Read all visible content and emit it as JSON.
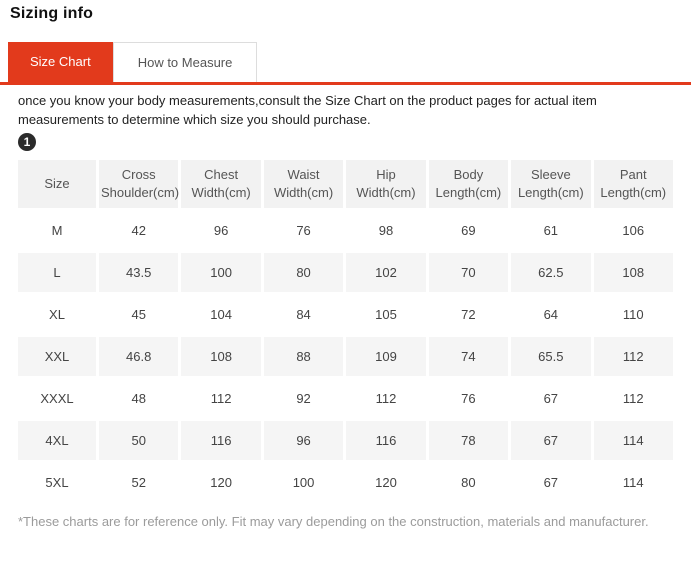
{
  "page": {
    "title": "Sizing info"
  },
  "tabs": [
    {
      "label": "Size Chart",
      "active": true
    },
    {
      "label": "How to Measure",
      "active": false
    }
  ],
  "description": "once you know your body measurements,consult the Size Chart on the product pages for actual item measurements to determine which size you should purchase.",
  "badge": "1",
  "table": {
    "columns": [
      "Size",
      "Cross Shoulder(cm)",
      "Chest Width(cm)",
      "Waist Width(cm)",
      "Hip Width(cm)",
      "Body Length(cm)",
      "Sleeve Length(cm)",
      "Pant Length(cm)"
    ],
    "rows": [
      [
        "M",
        "42",
        "96",
        "76",
        "98",
        "69",
        "61",
        "106"
      ],
      [
        "L",
        "43.5",
        "100",
        "80",
        "102",
        "70",
        "62.5",
        "108"
      ],
      [
        "XL",
        "45",
        "104",
        "84",
        "105",
        "72",
        "64",
        "110"
      ],
      [
        "XXL",
        "46.8",
        "108",
        "88",
        "109",
        "74",
        "65.5",
        "112"
      ],
      [
        "XXXL",
        "48",
        "112",
        "92",
        "112",
        "76",
        "67",
        "112"
      ],
      [
        "4XL",
        "50",
        "116",
        "96",
        "116",
        "78",
        "67",
        "114"
      ],
      [
        "5XL",
        "52",
        "120",
        "100",
        "120",
        "80",
        "67",
        "114"
      ]
    ]
  },
  "footnote": "*These charts are for reference only. Fit may vary depending on the construction, materials and manufacturer.",
  "colors": {
    "accent": "#e23a1c",
    "header_bg": "#f2f2f2",
    "stripe": "#f5f5f5",
    "badge_bg": "#2b2b2b"
  }
}
